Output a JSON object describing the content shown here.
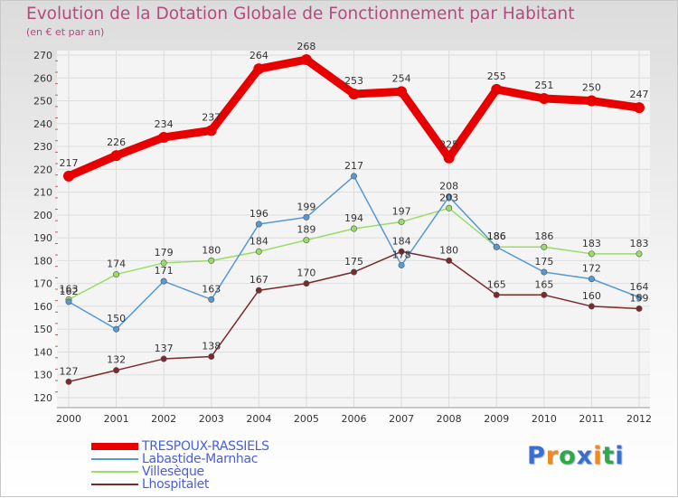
{
  "header": {
    "title": "Evolution de la Dotation Globale de Fonctionnement par Habitant",
    "subtitle": "(en € et par an)"
  },
  "brand": {
    "text": "Proxiti",
    "colors": [
      "#3a6fd0",
      "#f08a1c",
      "#2fa84a",
      "#3a6fd0",
      "#f08a1c",
      "#2fa84a",
      "#3a6fd0"
    ]
  },
  "chart_data": {
    "type": "line",
    "title": "Evolution de la Dotation Globale de Fonctionnement par Habitant",
    "subtitle": "(en € et par an)",
    "xlabel": "",
    "ylabel": "",
    "categories": [
      "2000",
      "2001",
      "2002",
      "2003",
      "2004",
      "2005",
      "2006",
      "2007",
      "2008",
      "2009",
      "2010",
      "2011",
      "2012"
    ],
    "ylim": [
      120,
      270
    ],
    "yticks": [
      120,
      130,
      140,
      150,
      160,
      170,
      180,
      190,
      200,
      210,
      220,
      230,
      240,
      250,
      260,
      270
    ],
    "grid": true,
    "legend_position": "bottom-left",
    "series": [
      {
        "name": "TRESPOUX-RASSIELS",
        "color": "#e80000",
        "values": [
          217,
          226,
          234,
          237,
          264,
          268,
          253,
          254,
          225,
          255,
          251,
          250,
          247
        ]
      },
      {
        "name": "Labastide-Marnhac",
        "color": "#5599d5",
        "values": [
          162,
          150,
          171,
          163,
          196,
          199,
          217,
          178,
          208,
          186,
          175,
          172,
          164
        ]
      },
      {
        "name": "Villesèque",
        "color": "#99dd66",
        "values": [
          163,
          174,
          179,
          180,
          184,
          189,
          194,
          197,
          203,
          186,
          186,
          183,
          183
        ]
      },
      {
        "name": "Lhospitalet",
        "color": "#7a2a2a",
        "values": [
          127,
          132,
          137,
          138,
          167,
          170,
          175,
          184,
          180,
          165,
          165,
          160,
          159
        ]
      }
    ]
  }
}
